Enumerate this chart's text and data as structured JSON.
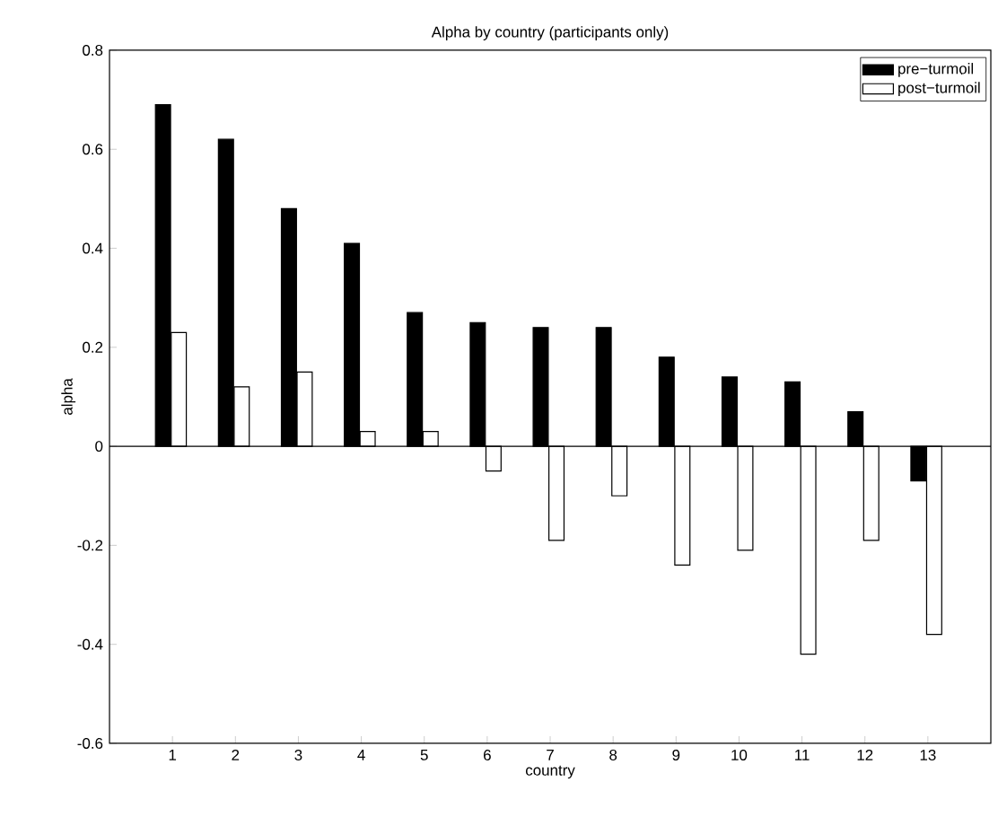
{
  "chart_data": {
    "type": "bar",
    "title": "Alpha by country (participants only)",
    "xlabel": "country",
    "ylabel": "alpha",
    "x": [
      1,
      2,
      3,
      4,
      5,
      6,
      7,
      8,
      9,
      10,
      11,
      12,
      13
    ],
    "series": [
      {
        "name": "pre−turmoil",
        "color": "#000000",
        "values": [
          0.69,
          0.62,
          0.48,
          0.41,
          0.27,
          0.25,
          0.24,
          0.24,
          0.18,
          0.14,
          0.13,
          0.07,
          -0.07
        ]
      },
      {
        "name": "post−turmoil",
        "color": "#ffffff",
        "values": [
          0.23,
          0.12,
          0.15,
          0.03,
          0.03,
          -0.05,
          -0.19,
          -0.1,
          -0.24,
          -0.21,
          -0.42,
          -0.19,
          -0.38
        ]
      }
    ],
    "xlim": [
      0,
      14
    ],
    "xticks": [
      1,
      2,
      3,
      4,
      5,
      6,
      7,
      8,
      9,
      10,
      11,
      12,
      13
    ],
    "ylim": [
      -0.6,
      0.8
    ],
    "yticks": [
      -0.6,
      -0.4,
      -0.2,
      0,
      0.2,
      0.4,
      0.6,
      0.8
    ],
    "ref_lines": [
      {
        "axis": "y",
        "value": 0,
        "color": "#000000"
      }
    ],
    "grid": false,
    "legend": "top right"
  }
}
